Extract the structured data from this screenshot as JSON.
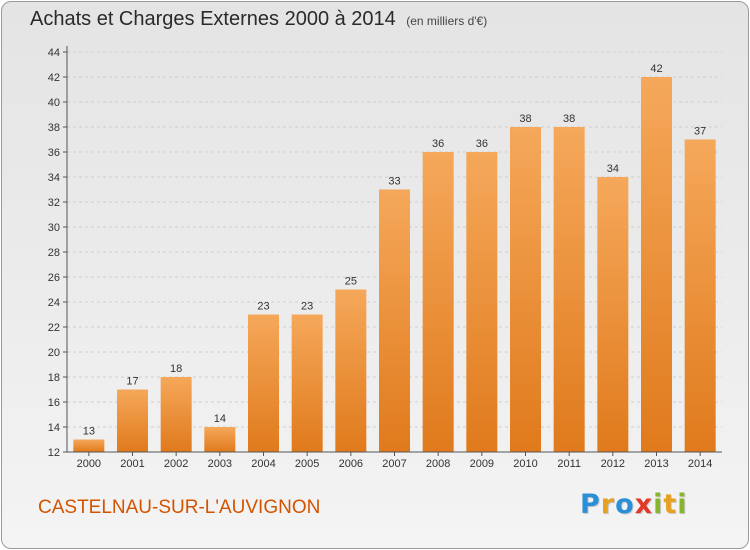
{
  "header": {
    "title": "Achats et Charges Externes 2000 à 2014",
    "unit": "(en milliers d'€)"
  },
  "footer": {
    "place": "CASTELNAU-SUR-L'AUVIGNON",
    "brand": "Proxiti",
    "brand_letters": [
      {
        "ch": "P",
        "color": "#2a8fd6"
      },
      {
        "ch": "r",
        "color": "#e8a020"
      },
      {
        "ch": "o",
        "color": "#2a8fd6"
      },
      {
        "ch": "x",
        "color": "#e23a2a"
      },
      {
        "ch": "i",
        "color": "#86b62a"
      },
      {
        "ch": "t",
        "color": "#e8a020"
      },
      {
        "ch": "i",
        "color": "#86b62a"
      }
    ]
  },
  "colors": {
    "bar_top": "#f5a85a",
    "bar_bottom": "#e07a1c",
    "grid": "#cfcfcf",
    "axis": "#555555"
  },
  "chart_data": {
    "type": "bar",
    "categories": [
      "2000",
      "2001",
      "2002",
      "2003",
      "2004",
      "2005",
      "2006",
      "2007",
      "2008",
      "2009",
      "2010",
      "2011",
      "2012",
      "2013",
      "2014"
    ],
    "values": [
      13,
      17,
      18,
      14,
      23,
      23,
      25,
      33,
      36,
      36,
      38,
      38,
      34,
      42,
      37
    ],
    "title": "Achats et Charges Externes 2000 à 2014",
    "xlabel": "",
    "ylabel": "",
    "ylim": [
      12,
      44
    ],
    "yticks": [
      12,
      14,
      16,
      18,
      20,
      22,
      24,
      26,
      28,
      30,
      32,
      34,
      36,
      38,
      40,
      42,
      44
    ],
    "grid": true,
    "data_labels": true
  }
}
